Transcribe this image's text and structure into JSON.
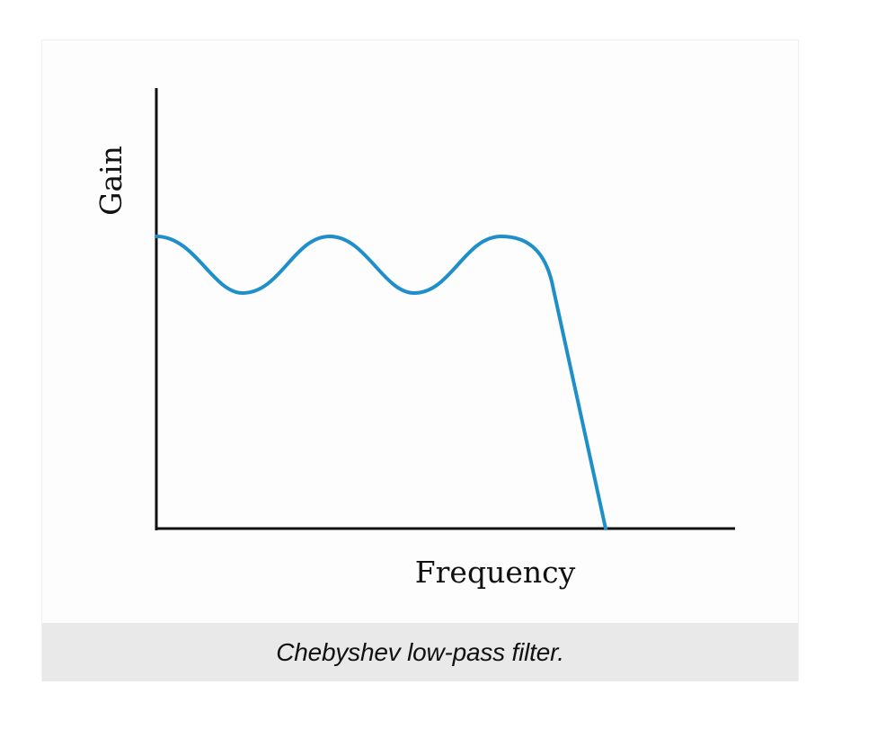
{
  "diagram": {
    "type": "line",
    "y_axis_label": "Gain",
    "x_axis_label": "Frequency",
    "caption": "Chebyshev low-pass filter.",
    "curve_color": "#1e8fc9",
    "axis_color": "#111111",
    "passband_ripples": 2,
    "response": "equiripple passband followed by steep roll-off to zero"
  }
}
